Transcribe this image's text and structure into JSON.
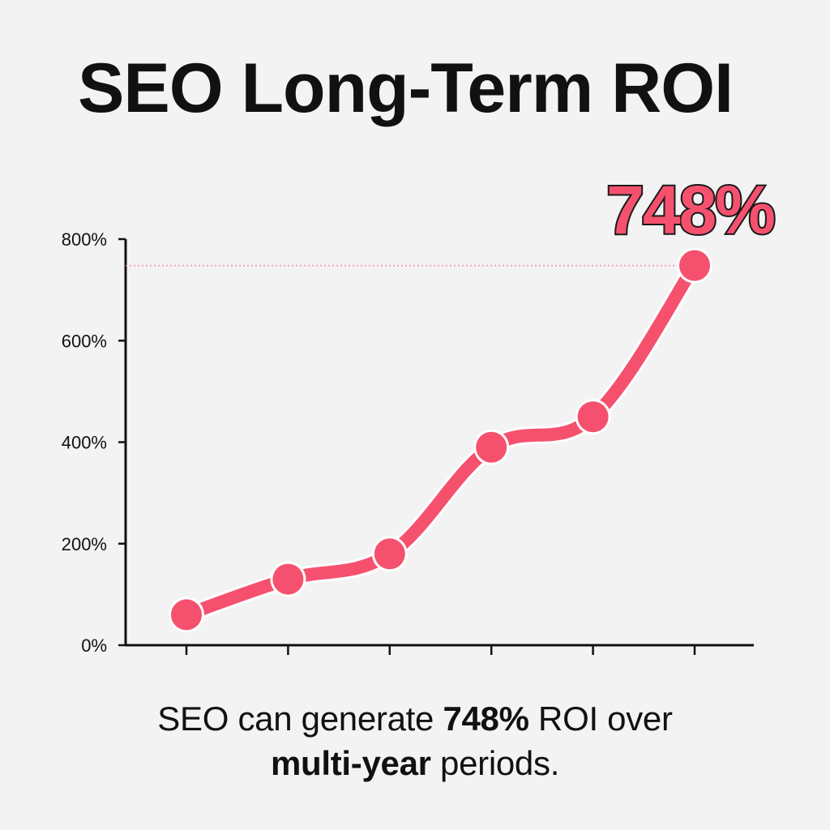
{
  "title": "SEO Long-Term ROI",
  "callout": "748%",
  "caption": {
    "part1": "SEO can generate ",
    "bold1": "748%",
    "part2": " ROI over",
    "bold2": "multi-year",
    "part3": " periods."
  },
  "colors": {
    "line": "#f5516e",
    "reference": "#f08a9c",
    "axis": "#111111",
    "background": "#f3f3f3"
  },
  "chart_data": {
    "type": "line",
    "title": "SEO Long-Term ROI",
    "xlabel": "",
    "ylabel": "",
    "x": [
      1,
      2,
      3,
      4,
      5,
      6
    ],
    "values": [
      60,
      130,
      180,
      390,
      450,
      748
    ],
    "ylim": [
      0,
      800
    ],
    "yticks": [
      0,
      200,
      400,
      600,
      800
    ],
    "ytick_labels": [
      "0%",
      "200%",
      "400%",
      "600%",
      "800%"
    ],
    "reference_line": 748,
    "grid": false,
    "legend": "none"
  }
}
